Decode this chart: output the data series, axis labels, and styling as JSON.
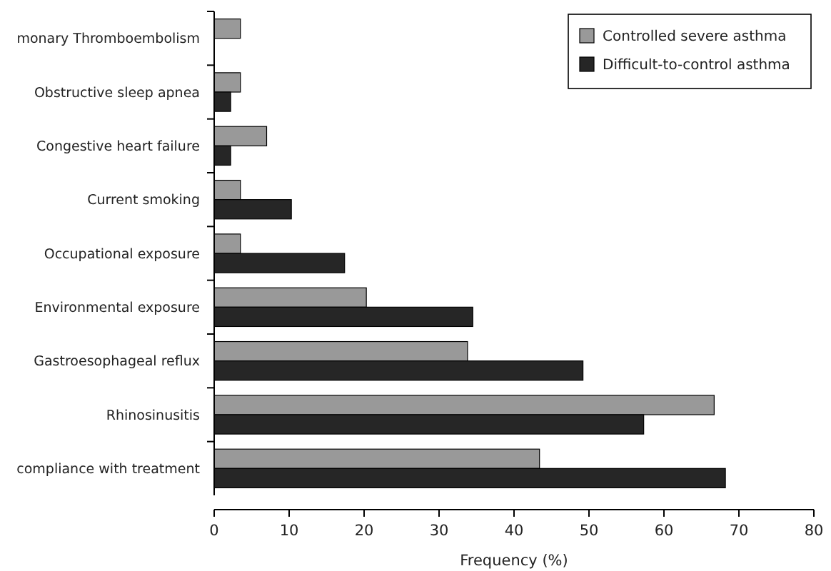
{
  "chart_data": {
    "type": "bar",
    "orientation": "horizontal",
    "xlabel": "Frequency (%)",
    "categories": [
      "monary Thromboembolism",
      "Obstructive sleep apnea",
      "Congestive heart failure",
      "Current smoking",
      "Occupational exposure",
      "Environmental exposure",
      "Gastroesophageal reflux",
      "Rhinosinusitis",
      "compliance with treatment"
    ],
    "series": [
      {
        "name": "Controlled severe asthma",
        "color": "#999999",
        "values": [
          3.5,
          3.5,
          7.0,
          3.5,
          3.5,
          20.3,
          33.8,
          66.7,
          43.4
        ]
      },
      {
        "name": "Difficult-to-control asthma",
        "color": "#262626",
        "values": [
          0,
          2.2,
          2.2,
          10.3,
          17.4,
          34.5,
          49.2,
          57.3,
          68.2
        ]
      }
    ],
    "xlim": [
      0,
      80
    ],
    "xticks": [
      0,
      10,
      20,
      30,
      40,
      50,
      60,
      70,
      80
    ],
    "grid": false,
    "legend": "top right"
  }
}
